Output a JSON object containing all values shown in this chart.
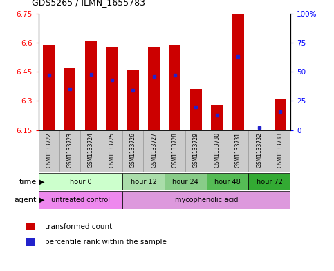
{
  "title": "GDS5265 / ILMN_1655783",
  "samples": [
    "GSM1133722",
    "GSM1133723",
    "GSM1133724",
    "GSM1133725",
    "GSM1133726",
    "GSM1133727",
    "GSM1133728",
    "GSM1133729",
    "GSM1133730",
    "GSM1133731",
    "GSM1133732",
    "GSM1133733"
  ],
  "bar_values": [
    6.59,
    6.47,
    6.61,
    6.58,
    6.46,
    6.58,
    6.59,
    6.36,
    6.28,
    6.75,
    6.15,
    6.31
  ],
  "percentile_values": [
    47,
    35,
    48,
    43,
    34,
    46,
    47,
    20,
    13,
    63,
    2,
    16
  ],
  "y_min": 6.15,
  "y_max": 6.75,
  "y_ticks": [
    6.15,
    6.3,
    6.45,
    6.6,
    6.75
  ],
  "y_tick_labels": [
    "6.15",
    "6.3",
    "6.45",
    "6.6",
    "6.75"
  ],
  "right_y_ticks": [
    0,
    25,
    50,
    75,
    100
  ],
  "right_y_tick_labels": [
    "0",
    "25",
    "50",
    "75",
    "100%"
  ],
  "bar_color": "#cc0000",
  "percentile_color": "#2222cc",
  "time_groups": [
    {
      "label": "hour 0",
      "start": 0,
      "end": 4,
      "color": "#ccffcc"
    },
    {
      "label": "hour 12",
      "start": 4,
      "end": 6,
      "color": "#aaddaa"
    },
    {
      "label": "hour 24",
      "start": 6,
      "end": 8,
      "color": "#88cc88"
    },
    {
      "label": "hour 48",
      "start": 8,
      "end": 10,
      "color": "#55bb55"
    },
    {
      "label": "hour 72",
      "start": 10,
      "end": 12,
      "color": "#33aa33"
    }
  ],
  "agent_groups": [
    {
      "label": "untreated control",
      "start": 0,
      "end": 4,
      "color": "#ee88ee"
    },
    {
      "label": "mycophenolic acid",
      "start": 4,
      "end": 12,
      "color": "#dd99dd"
    }
  ],
  "legend_items": [
    {
      "label": "transformed count",
      "color": "#cc0000"
    },
    {
      "label": "percentile rank within the sample",
      "color": "#2222cc"
    }
  ],
  "bar_width": 0.55,
  "sample_box_color": "#cccccc",
  "sample_box_edge": "#999999",
  "figsize": [
    4.83,
    3.93
  ],
  "dpi": 100
}
